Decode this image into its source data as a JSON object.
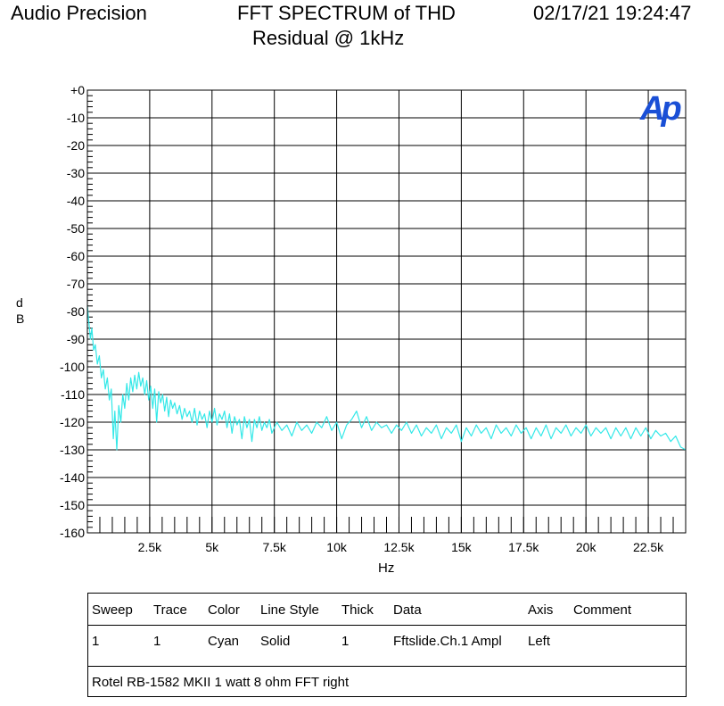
{
  "header": {
    "brand": "Audio Precision",
    "title_line1": "FFT SPECTRUM of THD",
    "title_line2": "Residual @ 1kHz",
    "timestamp": "02/17/21 19:24:47"
  },
  "logo": {
    "text": "Ap",
    "color": "#1a4fd6"
  },
  "chart_data": {
    "type": "line",
    "title": "FFT SPECTRUM of THD Residual @ 1kHz",
    "xlabel": "Hz",
    "ylabel": "dB",
    "xlim": [
      0,
      24000
    ],
    "ylim": [
      -160,
      0
    ],
    "grid": true,
    "x_ticks": [
      {
        "v": 2500,
        "label": "2.5k"
      },
      {
        "v": 5000,
        "label": "5k"
      },
      {
        "v": 7500,
        "label": "7.5k"
      },
      {
        "v": 10000,
        "label": "10k"
      },
      {
        "v": 12500,
        "label": "12.5k"
      },
      {
        "v": 15000,
        "label": "15k"
      },
      {
        "v": 17500,
        "label": "17.5k"
      },
      {
        "v": 20000,
        "label": "20k"
      },
      {
        "v": 22500,
        "label": "22.5k"
      }
    ],
    "y_ticks": [
      {
        "v": 0,
        "label": "+0"
      },
      {
        "v": -10,
        "label": "-10"
      },
      {
        "v": -20,
        "label": "-20"
      },
      {
        "v": -30,
        "label": "-30"
      },
      {
        "v": -40,
        "label": "-40"
      },
      {
        "v": -50,
        "label": "-50"
      },
      {
        "v": -60,
        "label": "-60"
      },
      {
        "v": -70,
        "label": "-70"
      },
      {
        "v": -80,
        "label": "-80"
      },
      {
        "v": -90,
        "label": "-90"
      },
      {
        "v": -100,
        "label": "-100"
      },
      {
        "v": -110,
        "label": "-110"
      },
      {
        "v": -120,
        "label": "-120"
      },
      {
        "v": -130,
        "label": "-130"
      },
      {
        "v": -140,
        "label": "-140"
      },
      {
        "v": -150,
        "label": "-150"
      },
      {
        "v": -160,
        "label": "-160"
      }
    ],
    "series": [
      {
        "color": "#33e8e8",
        "points": [
          [
            0,
            -78
          ],
          [
            60,
            -84
          ],
          [
            120,
            -90
          ],
          [
            180,
            -86
          ],
          [
            250,
            -94
          ],
          [
            320,
            -92
          ],
          [
            400,
            -99
          ],
          [
            480,
            -96
          ],
          [
            560,
            -104
          ],
          [
            640,
            -101
          ],
          [
            720,
            -108
          ],
          [
            800,
            -104
          ],
          [
            880,
            -112
          ],
          [
            960,
            -108
          ],
          [
            1040,
            -126
          ],
          [
            1100,
            -116
          ],
          [
            1180,
            -130
          ],
          [
            1260,
            -114
          ],
          [
            1340,
            -120
          ],
          [
            1420,
            -110
          ],
          [
            1500,
            -115
          ],
          [
            1580,
            -106
          ],
          [
            1660,
            -112
          ],
          [
            1740,
            -104
          ],
          [
            1820,
            -109
          ],
          [
            1900,
            -103
          ],
          [
            1980,
            -108
          ],
          [
            2060,
            -102
          ],
          [
            2140,
            -107
          ],
          [
            2220,
            -104
          ],
          [
            2300,
            -110
          ],
          [
            2380,
            -105
          ],
          [
            2460,
            -112
          ],
          [
            2540,
            -107
          ],
          [
            2620,
            -115
          ],
          [
            2700,
            -108
          ],
          [
            2780,
            -120
          ],
          [
            2860,
            -109
          ],
          [
            2940,
            -113
          ],
          [
            3020,
            -110
          ],
          [
            3100,
            -116
          ],
          [
            3180,
            -111
          ],
          [
            3260,
            -118
          ],
          [
            3340,
            -112
          ],
          [
            3420,
            -115
          ],
          [
            3500,
            -113
          ],
          [
            3600,
            -117
          ],
          [
            3700,
            -114
          ],
          [
            3800,
            -119
          ],
          [
            3900,
            -115
          ],
          [
            4000,
            -118
          ],
          [
            4100,
            -116
          ],
          [
            4200,
            -120
          ],
          [
            4300,
            -115
          ],
          [
            4400,
            -121
          ],
          [
            4500,
            -116
          ],
          [
            4600,
            -119
          ],
          [
            4700,
            -117
          ],
          [
            4800,
            -122
          ],
          [
            4900,
            -116
          ],
          [
            5000,
            -120
          ],
          [
            5100,
            -115
          ],
          [
            5200,
            -121
          ],
          [
            5300,
            -117
          ],
          [
            5400,
            -119
          ],
          [
            5500,
            -116
          ],
          [
            5600,
            -122
          ],
          [
            5700,
            -117
          ],
          [
            5800,
            -124
          ],
          [
            5900,
            -118
          ],
          [
            6000,
            -121
          ],
          [
            6100,
            -119
          ],
          [
            6200,
            -126
          ],
          [
            6300,
            -118
          ],
          [
            6400,
            -122
          ],
          [
            6500,
            -119
          ],
          [
            6600,
            -127
          ],
          [
            6700,
            -119
          ],
          [
            6800,
            -122
          ],
          [
            6900,
            -118
          ],
          [
            7000,
            -123
          ],
          [
            7100,
            -120
          ],
          [
            7200,
            -122
          ],
          [
            7300,
            -119
          ],
          [
            7400,
            -124
          ],
          [
            7600,
            -120
          ],
          [
            7800,
            -123
          ],
          [
            8000,
            -121
          ],
          [
            8200,
            -125
          ],
          [
            8400,
            -120
          ],
          [
            8600,
            -123
          ],
          [
            8800,
            -121
          ],
          [
            9000,
            -124
          ],
          [
            9200,
            -120
          ],
          [
            9400,
            -122
          ],
          [
            9600,
            -118
          ],
          [
            9800,
            -123
          ],
          [
            10000,
            -120
          ],
          [
            10200,
            -126
          ],
          [
            10400,
            -121
          ],
          [
            10600,
            -119
          ],
          [
            10800,
            -116
          ],
          [
            11000,
            -122
          ],
          [
            11200,
            -118
          ],
          [
            11400,
            -123
          ],
          [
            11600,
            -120
          ],
          [
            11800,
            -122
          ],
          [
            12000,
            -121
          ],
          [
            12200,
            -124
          ],
          [
            12400,
            -121
          ],
          [
            12600,
            -123
          ],
          [
            12800,
            -120
          ],
          [
            13000,
            -124
          ],
          [
            13200,
            -121
          ],
          [
            13400,
            -125
          ],
          [
            13600,
            -122
          ],
          [
            13800,
            -124
          ],
          [
            14000,
            -121
          ],
          [
            14200,
            -126
          ],
          [
            14400,
            -122
          ],
          [
            14600,
            -124
          ],
          [
            14800,
            -121
          ],
          [
            15000,
            -127
          ],
          [
            15200,
            -122
          ],
          [
            15400,
            -125
          ],
          [
            15600,
            -121
          ],
          [
            15800,
            -124
          ],
          [
            16000,
            -122
          ],
          [
            16200,
            -126
          ],
          [
            16400,
            -121
          ],
          [
            16600,
            -124
          ],
          [
            16800,
            -122
          ],
          [
            17000,
            -125
          ],
          [
            17200,
            -121
          ],
          [
            17400,
            -124
          ],
          [
            17600,
            -122
          ],
          [
            17800,
            -126
          ],
          [
            18000,
            -122
          ],
          [
            18200,
            -125
          ],
          [
            18400,
            -121
          ],
          [
            18600,
            -126
          ],
          [
            18800,
            -122
          ],
          [
            19000,
            -124
          ],
          [
            19200,
            -121
          ],
          [
            19400,
            -125
          ],
          [
            19600,
            -122
          ],
          [
            19800,
            -124
          ],
          [
            20000,
            -121
          ],
          [
            20200,
            -125
          ],
          [
            20400,
            -122
          ],
          [
            20600,
            -124
          ],
          [
            20800,
            -122
          ],
          [
            21000,
            -126
          ],
          [
            21200,
            -122
          ],
          [
            21400,
            -125
          ],
          [
            21600,
            -122
          ],
          [
            21800,
            -126
          ],
          [
            22000,
            -122
          ],
          [
            22200,
            -125
          ],
          [
            22400,
            -122
          ],
          [
            22600,
            -126
          ],
          [
            22800,
            -123
          ],
          [
            23000,
            -125
          ],
          [
            23200,
            -124
          ],
          [
            23400,
            -127
          ],
          [
            23600,
            -125
          ],
          [
            23800,
            -129
          ],
          [
            24000,
            -130
          ]
        ]
      }
    ]
  },
  "legend_table": {
    "headers": {
      "sweep": "Sweep",
      "trace": "Trace",
      "color": "Color",
      "line_style": "Line Style",
      "thick": "Thick",
      "data": "Data",
      "axis": "Axis",
      "comment": "Comment"
    },
    "row": {
      "sweep": "1",
      "trace": "1",
      "color": "Cyan",
      "line_style": "Solid",
      "thick": "1",
      "data": "Fftslide.Ch.1 Ampl",
      "axis": "Left",
      "comment": ""
    },
    "note": "Rotel RB-1582 MKII 1 watt 8 ohm FFT right"
  }
}
